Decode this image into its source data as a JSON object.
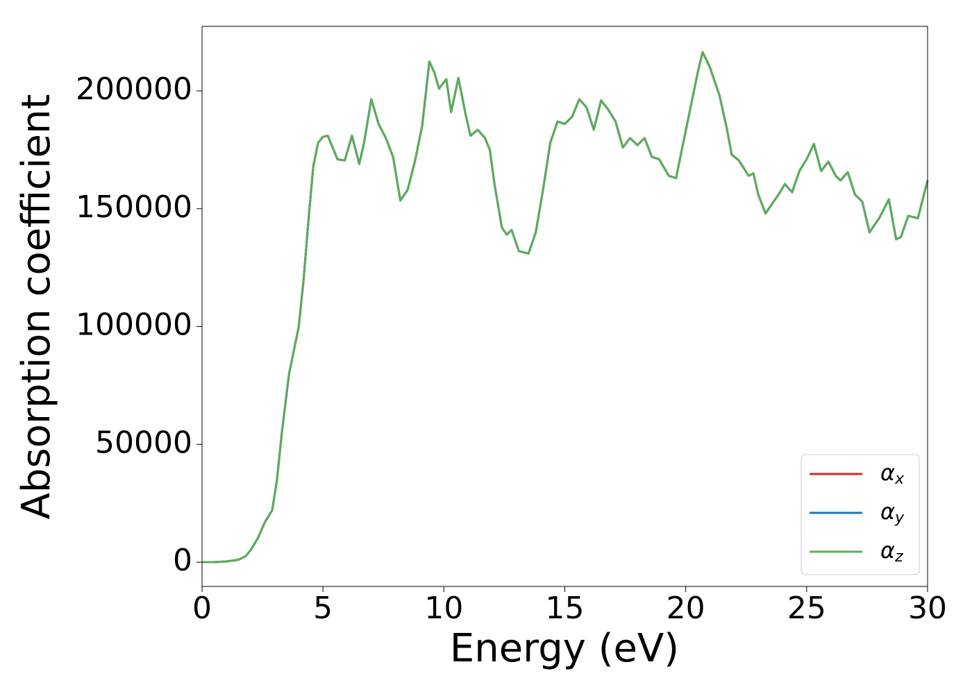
{
  "chart_data": {
    "type": "line",
    "xlabel": "Energy (eV)",
    "ylabel": "Absorption coefficient",
    "x": [
      0,
      0.5,
      1.0,
      1.5,
      1.8,
      2.0,
      2.3,
      2.6,
      2.9,
      3.1,
      3.3,
      3.6,
      3.8,
      4.0,
      4.2,
      4.4,
      4.6,
      4.8,
      5.0,
      5.2,
      5.4,
      5.6,
      5.9,
      6.2,
      6.5,
      6.7,
      7.0,
      7.3,
      7.6,
      7.9,
      8.2,
      8.5,
      8.8,
      9.1,
      9.4,
      9.6,
      9.8,
      10.1,
      10.3,
      10.6,
      10.9,
      11.1,
      11.4,
      11.7,
      11.9,
      12.1,
      12.4,
      12.6,
      12.8,
      13.1,
      13.3,
      13.5,
      13.8,
      14.1,
      14.4,
      14.7,
      15.0,
      15.3,
      15.6,
      15.9,
      16.2,
      16.5,
      16.8,
      17.1,
      17.4,
      17.7,
      18.0,
      18.3,
      18.6,
      18.9,
      19.3,
      19.6,
      19.9,
      20.2,
      20.5,
      20.7,
      21.0,
      21.4,
      21.7,
      21.9,
      22.2,
      22.6,
      22.8,
      23.0,
      23.3,
      23.6,
      23.9,
      24.1,
      24.4,
      24.7,
      25.0,
      25.3,
      25.6,
      25.9,
      26.2,
      26.4,
      26.7,
      27.0,
      27.3,
      27.6,
      28.0,
      28.4,
      28.7,
      28.9,
      29.2,
      29.6,
      30.0
    ],
    "series": [
      {
        "name": "αx",
        "color": "#d62728",
        "values": [
          0,
          0,
          300,
          1000,
          2500,
          5000,
          10000,
          17000,
          22000,
          35000,
          55000,
          80000,
          90000,
          100000,
          120000,
          145000,
          168000,
          178000,
          180500,
          181000,
          176000,
          171000,
          170500,
          181000,
          169000,
          178000,
          196500,
          186000,
          180000,
          172000,
          153500,
          158000,
          170000,
          185000,
          212500,
          208000,
          201000,
          205000,
          191000,
          205500,
          190000,
          181000,
          183500,
          180000,
          175000,
          160000,
          142000,
          139000,
          141000,
          132000,
          131500,
          131000,
          140000,
          158000,
          178000,
          187000,
          186000,
          189000,
          196500,
          193000,
          183500,
          196000,
          192000,
          187000,
          176000,
          180000,
          177000,
          180000,
          172000,
          171000,
          164000,
          163000,
          178000,
          193000,
          208000,
          216500,
          210000,
          198000,
          184000,
          173000,
          170500,
          164000,
          165000,
          156000,
          148000,
          152500,
          157000,
          160500,
          157000,
          166000,
          171000,
          177500,
          166000,
          170000,
          164000,
          162000,
          165500,
          156000,
          153000,
          140000,
          146000,
          154000,
          137000,
          138000,
          147000,
          146000,
          162000
        ]
      },
      {
        "name": "αy",
        "color": "#1f77b4",
        "values": [
          0,
          0,
          300,
          1000,
          2500,
          5000,
          10000,
          17000,
          22000,
          35000,
          55000,
          80000,
          90000,
          100000,
          120000,
          145000,
          168000,
          178000,
          180500,
          181000,
          176000,
          171000,
          170500,
          181000,
          169000,
          178000,
          196500,
          186000,
          180000,
          172000,
          153500,
          158000,
          170000,
          185000,
          212500,
          208000,
          201000,
          205000,
          191000,
          205500,
          190000,
          181000,
          183500,
          180000,
          175000,
          160000,
          142000,
          139000,
          141000,
          132000,
          131500,
          131000,
          140000,
          158000,
          178000,
          187000,
          186000,
          189000,
          196500,
          193000,
          183500,
          196000,
          192000,
          187000,
          176000,
          180000,
          177000,
          180000,
          172000,
          171000,
          164000,
          163000,
          178000,
          193000,
          208000,
          216500,
          210000,
          198000,
          184000,
          173000,
          170500,
          164000,
          165000,
          156000,
          148000,
          152500,
          157000,
          160500,
          157000,
          166000,
          171000,
          177500,
          166000,
          170000,
          164000,
          162000,
          165500,
          156000,
          153000,
          140000,
          146000,
          154000,
          137000,
          138000,
          147000,
          146000,
          162000
        ]
      },
      {
        "name": "αz",
        "color": "#5aad5a",
        "values": [
          0,
          0,
          300,
          1000,
          2500,
          5000,
          10000,
          17000,
          22000,
          35000,
          55000,
          80000,
          90000,
          100000,
          120000,
          145000,
          168000,
          178000,
          180500,
          181000,
          176000,
          171000,
          170500,
          181000,
          169000,
          178000,
          196500,
          186000,
          180000,
          172000,
          153500,
          158000,
          170000,
          185000,
          212500,
          208000,
          201000,
          205000,
          191000,
          205500,
          190000,
          181000,
          183500,
          180000,
          175000,
          160000,
          142000,
          139000,
          141000,
          132000,
          131500,
          131000,
          140000,
          158000,
          178000,
          187000,
          186000,
          189000,
          196500,
          193000,
          183500,
          196000,
          192000,
          187000,
          176000,
          180000,
          177000,
          180000,
          172000,
          171000,
          164000,
          163000,
          178000,
          193000,
          208000,
          216500,
          210000,
          198000,
          184000,
          173000,
          170500,
          164000,
          165000,
          156000,
          148000,
          152500,
          157000,
          160500,
          157000,
          166000,
          171000,
          177500,
          166000,
          170000,
          164000,
          162000,
          165500,
          156000,
          153000,
          140000,
          146000,
          154000,
          137000,
          138000,
          147000,
          146000,
          162000
        ]
      }
    ],
    "xlim": [
      0,
      30
    ],
    "xticks": [
      0,
      5,
      10,
      15,
      20,
      25,
      30
    ],
    "ylim": [
      -10300,
      227400
    ],
    "yticks": [
      0,
      50000,
      100000,
      150000,
      200000
    ],
    "legend": "lower right",
    "grid": false
  }
}
